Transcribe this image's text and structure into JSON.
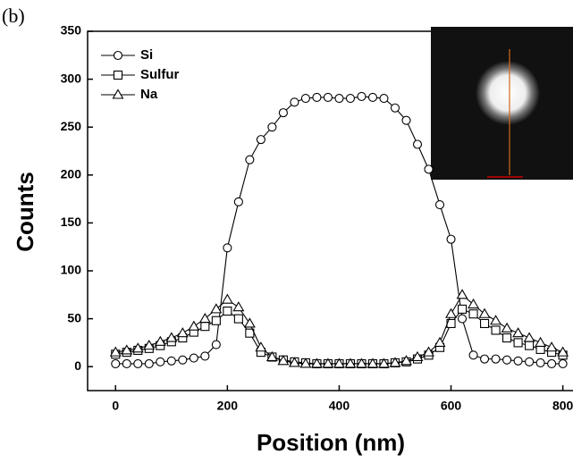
{
  "chart_data": {
    "type": "line",
    "panel_label": "(b)",
    "xlabel": "Position (nm)",
    "ylabel": "Counts",
    "x": [
      0,
      20,
      40,
      60,
      80,
      100,
      120,
      140,
      160,
      180,
      200,
      220,
      240,
      260,
      280,
      300,
      320,
      340,
      360,
      380,
      400,
      420,
      440,
      460,
      480,
      500,
      520,
      540,
      560,
      580,
      600,
      620,
      640,
      660,
      680,
      700,
      720,
      740,
      760,
      780,
      800
    ],
    "series": [
      {
        "name": "Si",
        "color": "#000000",
        "marker": "circle",
        "values": [
          3,
          3,
          3,
          3,
          5,
          6,
          7,
          9,
          11,
          23,
          124,
          172,
          216,
          237,
          250,
          265,
          276,
          280,
          281,
          281,
          280,
          280,
          282,
          281,
          280,
          270,
          257,
          232,
          206,
          169,
          133,
          50,
          12,
          8,
          8,
          7,
          6,
          5,
          4,
          3,
          3
        ]
      },
      {
        "name": "Sulfur",
        "color": "#000000",
        "marker": "square",
        "values": [
          13,
          15,
          17,
          19,
          22,
          26,
          30,
          36,
          42,
          48,
          58,
          50,
          35,
          15,
          10,
          7,
          5,
          4,
          3,
          3,
          3,
          3,
          3,
          3,
          3,
          4,
          5,
          8,
          12,
          20,
          45,
          60,
          55,
          45,
          38,
          30,
          25,
          22,
          18,
          15,
          12
        ]
      },
      {
        "name": "Na",
        "color": "#000000",
        "marker": "triangle",
        "values": [
          15,
          17,
          19,
          22,
          26,
          30,
          35,
          42,
          50,
          60,
          70,
          62,
          45,
          20,
          10,
          6,
          4,
          3,
          3,
          3,
          3,
          3,
          3,
          3,
          3,
          4,
          6,
          10,
          15,
          25,
          55,
          75,
          65,
          55,
          48,
          40,
          35,
          30,
          25,
          20,
          15
        ]
      }
    ],
    "xlim": [
      -50,
      815
    ],
    "ylim": [
      -25,
      350
    ],
    "xticks": [
      0,
      200,
      400,
      600,
      800
    ],
    "yticks": [
      0,
      50,
      100,
      150,
      200,
      250,
      300,
      350
    ],
    "legend": "upper left"
  }
}
